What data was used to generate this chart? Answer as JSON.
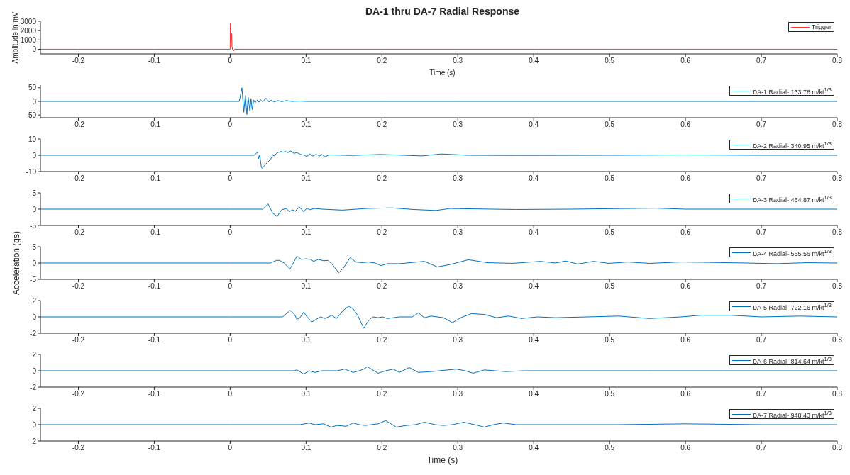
{
  "chart_data": [
    {
      "type": "line",
      "title": "DA-1 thru DA-7 Radial Response",
      "xlabel": "Time (s)",
      "ylabel": "Amplitude in mV",
      "legend": "top right",
      "xlim": [
        -0.25,
        0.8
      ],
      "xticks": [
        -0.2,
        -0.1,
        0,
        0.1,
        0.2,
        0.3,
        0.4,
        0.5,
        0.6,
        0.7,
        0.8
      ],
      "ylim": [
        -500,
        3000
      ],
      "yticks": [
        0,
        1000,
        2000,
        3000
      ],
      "x": [
        -0.25,
        -0.2,
        -0.1,
        0,
        0.0003,
        0.0012,
        0.0015,
        0.002,
        0.0025,
        0.0033,
        0.0045,
        0.006,
        0.1,
        0.2,
        0.3,
        0.4,
        0.5,
        0.6,
        0.7,
        0.8
      ],
      "series": [
        {
          "name": "Trigger",
          "color": "#ff3333",
          "values": [
            0,
            0,
            0,
            0,
            2800,
            200,
            800,
            1700,
            300,
            -100,
            -200,
            0,
            0,
            0,
            0,
            0,
            0,
            0,
            0,
            0
          ]
        }
      ]
    },
    {
      "type": "line",
      "legend": "top right",
      "xlim": [
        -0.25,
        0.8
      ],
      "xticks": [
        -0.2,
        -0.1,
        0,
        0.1,
        0.2,
        0.3,
        0.4,
        0.5,
        0.6,
        0.7,
        0.8
      ],
      "ylim": [
        -60,
        60
      ],
      "yticks": [
        -50,
        0,
        50
      ],
      "x": [
        -0.25,
        0,
        0.012,
        0.0155,
        0.018,
        0.02,
        0.022,
        0.0237,
        0.026,
        0.0275,
        0.029,
        0.031,
        0.033,
        0.036,
        0.038,
        0.04,
        0.043,
        0.047,
        0.051,
        0.054,
        0.058,
        0.063,
        0.068,
        0.074,
        0.081,
        0.092,
        0.1,
        0.2,
        0.3,
        0.4,
        0.5,
        0.6,
        0.7,
        0.8
      ],
      "series": [
        {
          "name": "DA-1 Radial- 133.78 m/kt$^{1/3}$",
          "color": "#0072bd",
          "values": [
            0,
            0,
            0,
            50,
            -40,
            22,
            -48,
            15,
            -35,
            10,
            -30,
            5,
            -5,
            5,
            -3,
            6,
            -2,
            12,
            -2,
            4,
            -2,
            3,
            -1,
            3,
            0,
            1,
            0,
            0,
            0,
            0,
            0,
            0,
            0,
            0
          ]
        }
      ]
    },
    {
      "type": "line",
      "legend": "top right",
      "xlim": [
        -0.25,
        0.8
      ],
      "xticks": [
        -0.2,
        -0.1,
        0,
        0.1,
        0.2,
        0.3,
        0.4,
        0.5,
        0.6,
        0.7,
        0.8
      ],
      "ylim": [
        -10,
        10
      ],
      "yticks": [
        -10,
        0,
        10
      ],
      "x": [
        -0.25,
        0,
        0.032,
        0.036,
        0.0375,
        0.039,
        0.041,
        0.042,
        0.047,
        0.053,
        0.055,
        0.056,
        0.0575,
        0.062,
        0.067,
        0.07,
        0.073,
        0.076,
        0.08,
        0.084,
        0.088,
        0.093,
        0.098,
        0.101,
        0.105,
        0.109,
        0.113,
        0.118,
        0.121,
        0.125,
        0.13,
        0.161,
        0.198,
        0.253,
        0.278,
        0.314,
        0.376,
        0.5,
        0.6,
        0.7,
        0.8
      ],
      "series": [
        {
          "name": "DA-2 Radial- 340.95 m/kt$^{1/3}$",
          "color": "#0072bd",
          "values": [
            0,
            0,
            0,
            2,
            -2,
            0,
            -7,
            -8,
            -5.4,
            -2.6,
            -1,
            0.5,
            -0.5,
            1.5,
            2.3,
            1.9,
            2.3,
            1.6,
            2.6,
            1.2,
            1.6,
            0.5,
            0,
            -0.8,
            0.8,
            -0.5,
            0.5,
            -0.3,
            0.5,
            -1,
            0.2,
            -0.1,
            0.5,
            -0.4,
            0.8,
            0,
            -0.1,
            0,
            0.2,
            0,
            0
          ]
        }
      ]
    },
    {
      "type": "line",
      "legend": "top right",
      "xlim": [
        -0.25,
        0.8
      ],
      "xticks": [
        -0.2,
        -0.1,
        0,
        0.1,
        0.2,
        0.3,
        0.4,
        0.5,
        0.6,
        0.7,
        0.8
      ],
      "ylim": [
        -5,
        5
      ],
      "yticks": [
        -5,
        0,
        5
      ],
      "x": [
        -0.25,
        0,
        0.043,
        0.05,
        0.056,
        0.062,
        0.068,
        0.074,
        0.078,
        0.082,
        0.086,
        0.091,
        0.097,
        0.101,
        0.105,
        0.111,
        0.121,
        0.148,
        0.179,
        0.213,
        0.241,
        0.271,
        0.29,
        0.345,
        0.376,
        0.45,
        0.56,
        0.6,
        0.7,
        0.8
      ],
      "series": [
        {
          "name": "DA-3 Radial- 464.87 m/kt$^{1/3}$",
          "color": "#0072bd",
          "values": [
            0,
            0,
            0,
            1.6,
            -1.2,
            -2.2,
            -0.2,
            0.2,
            -0.8,
            -0.2,
            -0.6,
            0.7,
            -0.8,
            0.3,
            -0.2,
            0.2,
            0,
            -0.3,
            0.2,
            0.4,
            -0.1,
            -0.4,
            0.2,
            0,
            -0.1,
            0,
            0.3,
            0,
            0,
            0
          ]
        }
      ]
    },
    {
      "type": "line",
      "ylabel": "Acceleration (gs)",
      "legend": "top right",
      "xlim": [
        -0.25,
        0.8
      ],
      "xticks": [
        -0.2,
        -0.1,
        0,
        0.1,
        0.2,
        0.3,
        0.4,
        0.5,
        0.6,
        0.7,
        0.8
      ],
      "ylim": [
        -5,
        5
      ],
      "yticks": [
        -5,
        0,
        5
      ],
      "x": [
        -0.25,
        0,
        0.053,
        0.061,
        0.065,
        0.071,
        0.079,
        0.088,
        0.094,
        0.1,
        0.106,
        0.11,
        0.116,
        0.123,
        0.129,
        0.135,
        0.143,
        0.149,
        0.158,
        0.166,
        0.174,
        0.182,
        0.191,
        0.199,
        0.207,
        0.223,
        0.256,
        0.273,
        0.289,
        0.314,
        0.339,
        0.372,
        0.409,
        0.429,
        0.442,
        0.458,
        0.479,
        0.499,
        0.524,
        0.553,
        0.594,
        0.63,
        0.68,
        0.72,
        0.76,
        0.8
      ],
      "series": [
        {
          "name": "DA-4 Radial- 565.56 m/kt$^{1/3}$",
          "color": "#0072bd",
          "values": [
            0,
            0,
            0,
            0.8,
            0.8,
            0,
            -1.8,
            2.1,
            1.1,
            1.3,
            1.1,
            0.5,
            1.1,
            0.7,
            0.8,
            -0.5,
            -3,
            -1.6,
            1.6,
            0.3,
            0.1,
            0.3,
            0,
            -0.8,
            -0.2,
            -0.2,
            0.5,
            -1.2,
            -0.5,
            1,
            0.1,
            -0.1,
            0.5,
            0,
            0.6,
            -0.3,
            0.5,
            -0.1,
            0.3,
            -0.1,
            0.3,
            0.2,
            0,
            -0.2,
            0.1,
            0
          ]
        }
      ]
    },
    {
      "type": "line",
      "legend": "top right",
      "xlim": [
        -0.25,
        0.8
      ],
      "xticks": [
        -0.2,
        -0.1,
        0,
        0.1,
        0.2,
        0.3,
        0.4,
        0.5,
        0.6,
        0.7,
        0.8
      ],
      "ylim": [
        -2,
        2
      ],
      "yticks": [
        -2,
        0,
        2
      ],
      "x": [
        -0.25,
        0,
        0.069,
        0.079,
        0.084,
        0.087,
        0.0877,
        0.092,
        0.097,
        0.102,
        0.108,
        0.119,
        0.125,
        0.134,
        0.14,
        0.149,
        0.156,
        0.162,
        0.168,
        0.176,
        0.182,
        0.188,
        0.195,
        0.201,
        0.207,
        0.223,
        0.24,
        0.248,
        0.256,
        0.265,
        0.281,
        0.293,
        0.304,
        0.318,
        0.335,
        0.351,
        0.367,
        0.384,
        0.405,
        0.429,
        0.47,
        0.512,
        0.553,
        0.594,
        0.62,
        0.66,
        0.7,
        0.75,
        0.8
      ],
      "series": [
        {
          "name": "DA-5 Radial- 722.16 m/kt$^{1/3}$",
          "color": "#0072bd",
          "values": [
            0,
            0,
            0,
            0.8,
            0.4,
            -0.1,
            -0.3,
            -0.1,
            0.6,
            -0.1,
            -0.6,
            0,
            -0.2,
            0.2,
            -0.2,
            0.8,
            1.3,
            1,
            0.2,
            -1.4,
            -0.5,
            0,
            -0.1,
            0,
            -0.2,
            0,
            0,
            0.5,
            -0.1,
            0.1,
            -0.1,
            -0.7,
            -0.1,
            0.4,
            0.3,
            -0.1,
            0.1,
            -0.2,
            0,
            -0.1,
            0,
            0.1,
            -0.2,
            0,
            0.2,
            0.2,
            0,
            0.1,
            0
          ]
        }
      ]
    },
    {
      "type": "line",
      "legend": "top right",
      "xlim": [
        -0.25,
        0.8
      ],
      "xticks": [
        -0.2,
        -0.1,
        0,
        0.1,
        0.2,
        0.3,
        0.4,
        0.5,
        0.6,
        0.7,
        0.8
      ],
      "ylim": [
        -2,
        2
      ],
      "yticks": [
        -2,
        0,
        2
      ],
      "x": [
        -0.25,
        0,
        0.084,
        0.088,
        0.097,
        0.104,
        0.112,
        0.121,
        0.141,
        0.151,
        0.162,
        0.17,
        0.176,
        0.181,
        0.186,
        0.195,
        0.205,
        0.215,
        0.223,
        0.236,
        0.248,
        0.265,
        0.298,
        0.31,
        0.32,
        0.335,
        0.363,
        0.388,
        0.429,
        0.47,
        0.55,
        0.65,
        0.8
      ],
      "series": [
        {
          "name": "DA-6 Radial- 814.64 m/kt$^{1/3}$",
          "color": "#0072bd",
          "values": [
            0,
            0,
            0,
            0.1,
            -0.4,
            0,
            -0.2,
            0,
            0,
            0.2,
            -0.2,
            0,
            0.2,
            0.5,
            0.2,
            -0.3,
            0,
            0.2,
            -0.2,
            0.4,
            -0.2,
            -0.1,
            0.2,
            0,
            -0.3,
            0.1,
            -0.1,
            0,
            0,
            0,
            0,
            0,
            0
          ]
        }
      ]
    },
    {
      "type": "line",
      "xlabel": "Time (s)",
      "legend": "top right",
      "xlim": [
        -0.25,
        0.8
      ],
      "xticks": [
        -0.2,
        -0.1,
        0,
        0.1,
        0.2,
        0.3,
        0.4,
        0.5,
        0.6,
        0.7,
        0.8
      ],
      "ylim": [
        -2,
        2
      ],
      "yticks": [
        -2,
        0,
        2
      ],
      "x": [
        -0.25,
        0,
        0.092,
        0.104,
        0.112,
        0.123,
        0.133,
        0.141,
        0.153,
        0.162,
        0.17,
        0.178,
        0.186,
        0.195,
        0.205,
        0.219,
        0.232,
        0.244,
        0.256,
        0.27,
        0.281,
        0.293,
        0.308,
        0.322,
        0.335,
        0.347,
        0.36,
        0.377,
        0.429,
        0.512,
        0.6,
        0.7,
        0.8
      ],
      "series": [
        {
          "name": "DA-7 Radial- 948.43 m/kt$^{1/3}$",
          "color": "#0072bd",
          "values": [
            0,
            0,
            0,
            0.2,
            0,
            0.1,
            -0.3,
            -0.1,
            -0.2,
            0.2,
            0,
            -0.1,
            0,
            0.1,
            0.5,
            -0.3,
            -0.1,
            0,
            0.3,
            0,
            -0.1,
            0,
            0.3,
            0,
            -0.3,
            0,
            0.2,
            0,
            0,
            0,
            0.1,
            0,
            0
          ]
        }
      ]
    }
  ]
}
